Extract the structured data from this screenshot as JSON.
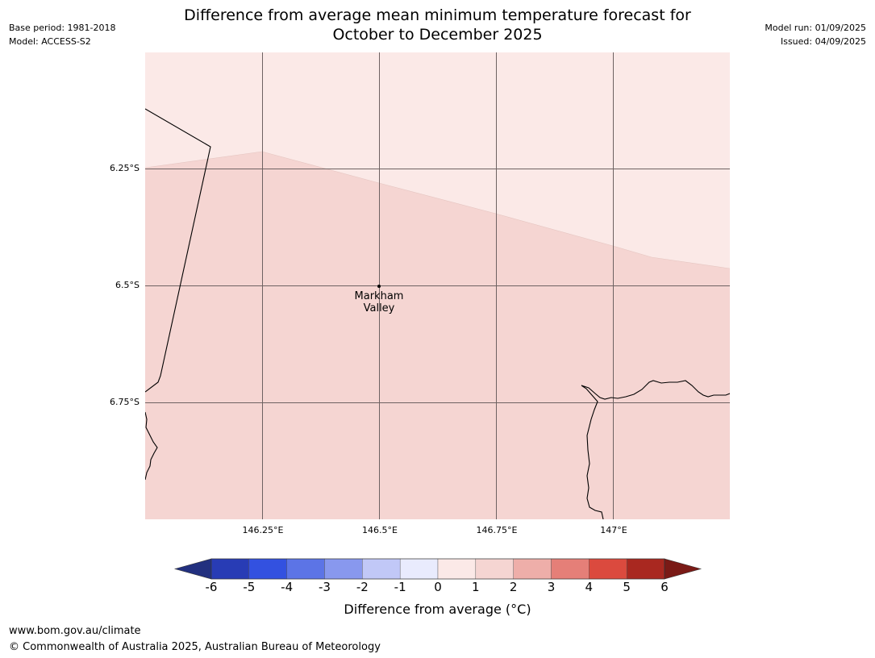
{
  "header": {
    "base_period": "Base period: 1981-2018",
    "model": "Model: ACCESS-S2",
    "model_run": "Model run: 01/09/2025",
    "issued": "Issued: 04/09/2025",
    "title_line1": "Difference from average mean minimum temperature forecast for",
    "title_line2": "October to December 2025"
  },
  "map": {
    "lat_labels": [
      "6.25°S",
      "6.5°S",
      "6.75°S"
    ],
    "lon_labels": [
      "146.25°E",
      "146.5°E",
      "146.75°E",
      "147°E"
    ],
    "place": {
      "name_line1": "Markham",
      "name_line2": "Valley",
      "lat": -6.5,
      "lon": 146.5
    },
    "colors": {
      "zone_0_1": "#fbe9e7",
      "zone_1_2": "#f5d5d2",
      "gridline": "#6e6262",
      "coast": "#000000"
    }
  },
  "colorbar": {
    "ticks": [
      "-6",
      "-5",
      "-4",
      "-3",
      "-2",
      "-1",
      "0",
      "1",
      "2",
      "3",
      "4",
      "5",
      "6"
    ],
    "colors": [
      "#22307f",
      "#283cb5",
      "#3351e0",
      "#5c74e6",
      "#8898ee",
      "#c1c8f7",
      "#e9ebfd",
      "#fbe9e7",
      "#f5d5d2",
      "#eeaea9",
      "#e57f78",
      "#db4a3e",
      "#a92820",
      "#7a1a16"
    ],
    "label": "Difference from average (°C)"
  },
  "footer": {
    "url": "www.bom.gov.au/climate",
    "copyright": "© Commonwealth of Australia 2025, Australian Bureau of Meteorology"
  }
}
